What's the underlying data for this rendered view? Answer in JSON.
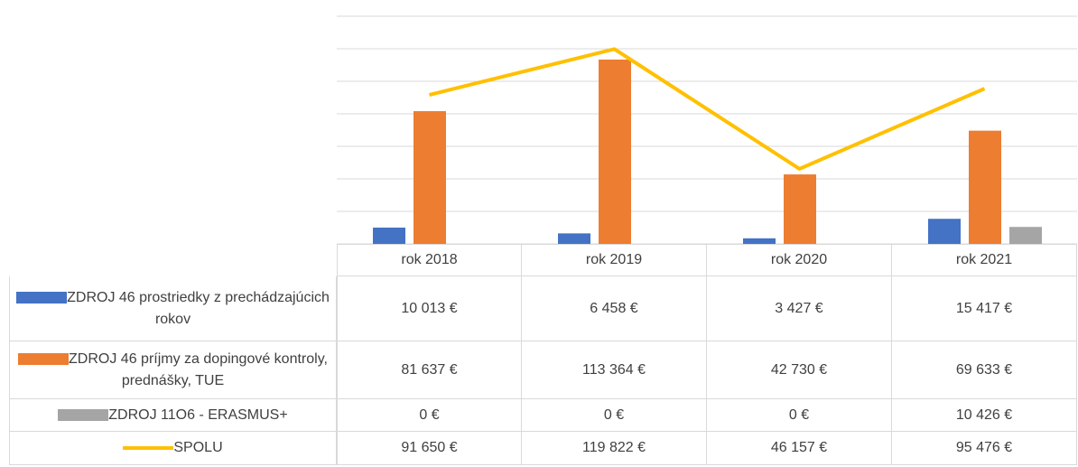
{
  "chart_data": {
    "type": "bar",
    "categories": [
      "rok 2018",
      "rok 2019",
      "rok 2020",
      "rok 2021"
    ],
    "series": [
      {
        "name": "ZDROJ 46 prostriedky z prechádzajúcich rokov",
        "color": "#4472c4",
        "values": [
          10013,
          6458,
          3427,
          15417
        ],
        "value_labels": [
          "10 013 €",
          "6 458 €",
          "3 427 €",
          "15 417 €"
        ]
      },
      {
        "name": "ZDROJ 46 príjmy za dopingové kontroly, prednášky, TUE",
        "color": "#ed7d31",
        "values": [
          81637,
          113364,
          42730,
          69633
        ],
        "value_labels": [
          "81 637 €",
          "113 364 €",
          "42 730 €",
          "69 633 €"
        ]
      },
      {
        "name": "ZDROJ 11O6 - ERASMUS+",
        "color": "#a5a5a5",
        "values": [
          0,
          0,
          0,
          10426
        ],
        "value_labels": [
          "0 €",
          "0 €",
          "0 €",
          "10 426 €"
        ]
      },
      {
        "name": "SPOLU",
        "type": "line",
        "color": "#ffc000",
        "values": [
          91650,
          119822,
          46157,
          95476
        ],
        "value_labels": [
          "91 650 €",
          "119 822 €",
          "46 157 €",
          "95 476 €"
        ]
      }
    ],
    "ylim": [
      0,
      140000
    ],
    "yticks": [
      0,
      20000,
      40000,
      60000,
      80000,
      100000,
      120000,
      140000
    ],
    "grid": true
  }
}
